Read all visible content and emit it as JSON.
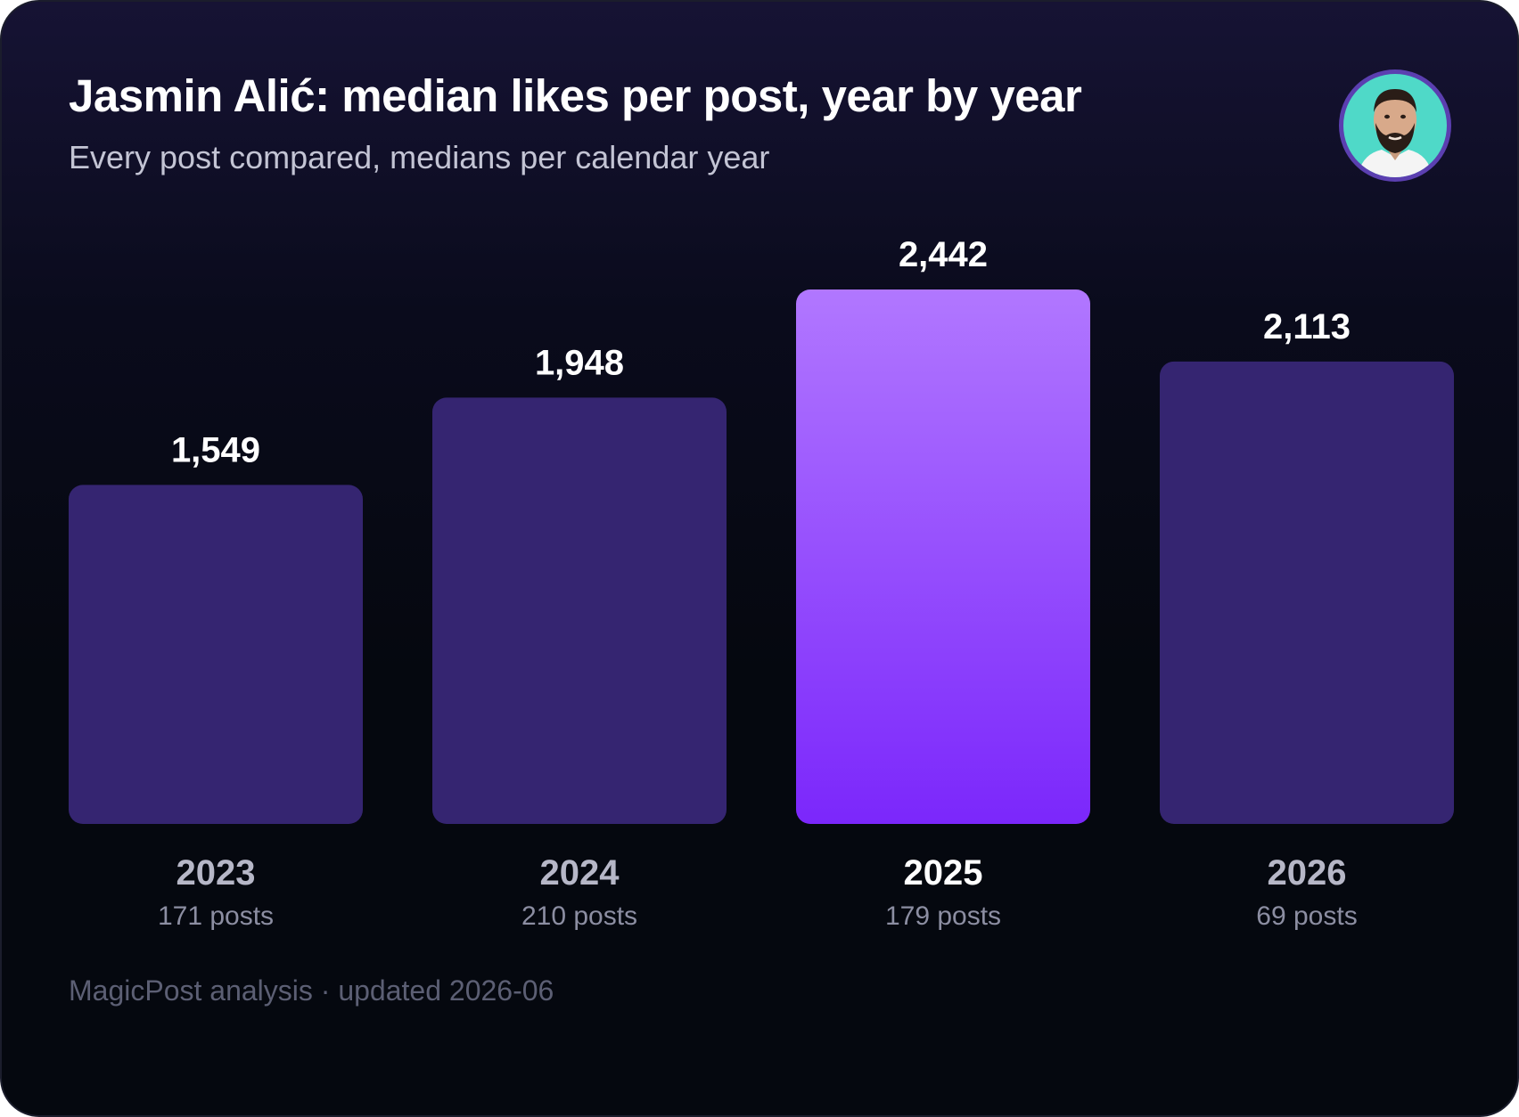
{
  "header": {
    "title": "Jasmin Alić: median likes per post, year by year",
    "subtitle": "Every post compared, medians per calendar year"
  },
  "avatar": {
    "icon": "person-avatar-icon"
  },
  "footer": {
    "text": "MagicPost analysis · updated 2026-06"
  },
  "colors": {
    "bar": "#352571",
    "highlight_top": "#b177ff",
    "highlight_bottom": "#7b27fb",
    "avatar_ring": "#5b3fb0",
    "avatar_bg": "#4fd9c8"
  },
  "chart_data": {
    "type": "bar",
    "categories": [
      "2023",
      "2024",
      "2025",
      "2026"
    ],
    "values": [
      1549,
      1948,
      2442,
      2113
    ],
    "value_labels": [
      "1,549",
      "1,948",
      "2,442",
      "2,113"
    ],
    "post_counts": [
      "171 posts",
      "210 posts",
      "179 posts",
      "69 posts"
    ],
    "highlight_index": 2,
    "title": "Jasmin Alić: median likes per post, year by year",
    "subtitle": "Every post compared, medians per calendar year",
    "xlabel": "",
    "ylabel": "",
    "ylim": [
      0,
      2442
    ],
    "grid": false,
    "legend": "none"
  }
}
